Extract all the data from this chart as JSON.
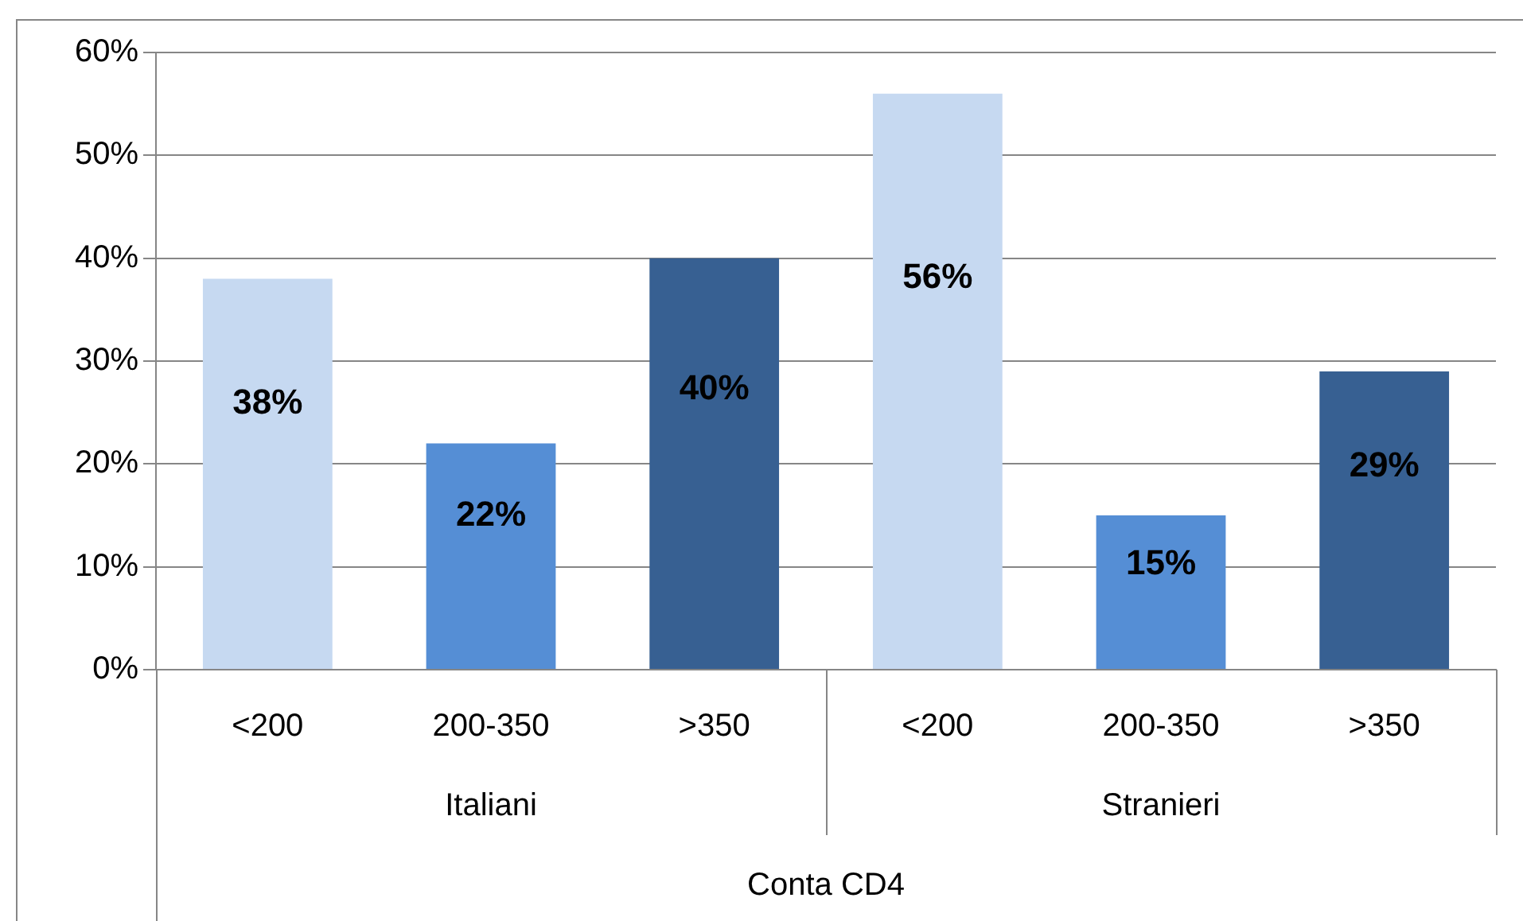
{
  "chart_data": {
    "type": "bar",
    "categories": [
      "<200",
      "200-350",
      ">350",
      "<200",
      "200-350",
      ">350"
    ],
    "values": [
      38,
      22,
      40,
      56,
      15,
      29
    ],
    "colors": [
      "#c6d9f1",
      "#558ed5",
      "#376092",
      "#c6d9f1",
      "#558ed5",
      "#376092"
    ],
    "value_labels": [
      "38%",
      "22%",
      "40%",
      "56%",
      "15%",
      "29%"
    ],
    "ylim": [
      0,
      60
    ],
    "yticks": [
      {
        "value": 0,
        "label": "0%"
      },
      {
        "value": 10,
        "label": "10%"
      },
      {
        "value": 20,
        "label": "20%"
      },
      {
        "value": 30,
        "label": "30%"
      },
      {
        "value": 40,
        "label": "40%"
      },
      {
        "value": 50,
        "label": "50%"
      },
      {
        "value": 60,
        "label": "60%"
      }
    ],
    "annotations": [
      "Italiani",
      "Stranieri"
    ],
    "xlabel": "Conta CD4",
    "grid": "y",
    "legend": false
  }
}
